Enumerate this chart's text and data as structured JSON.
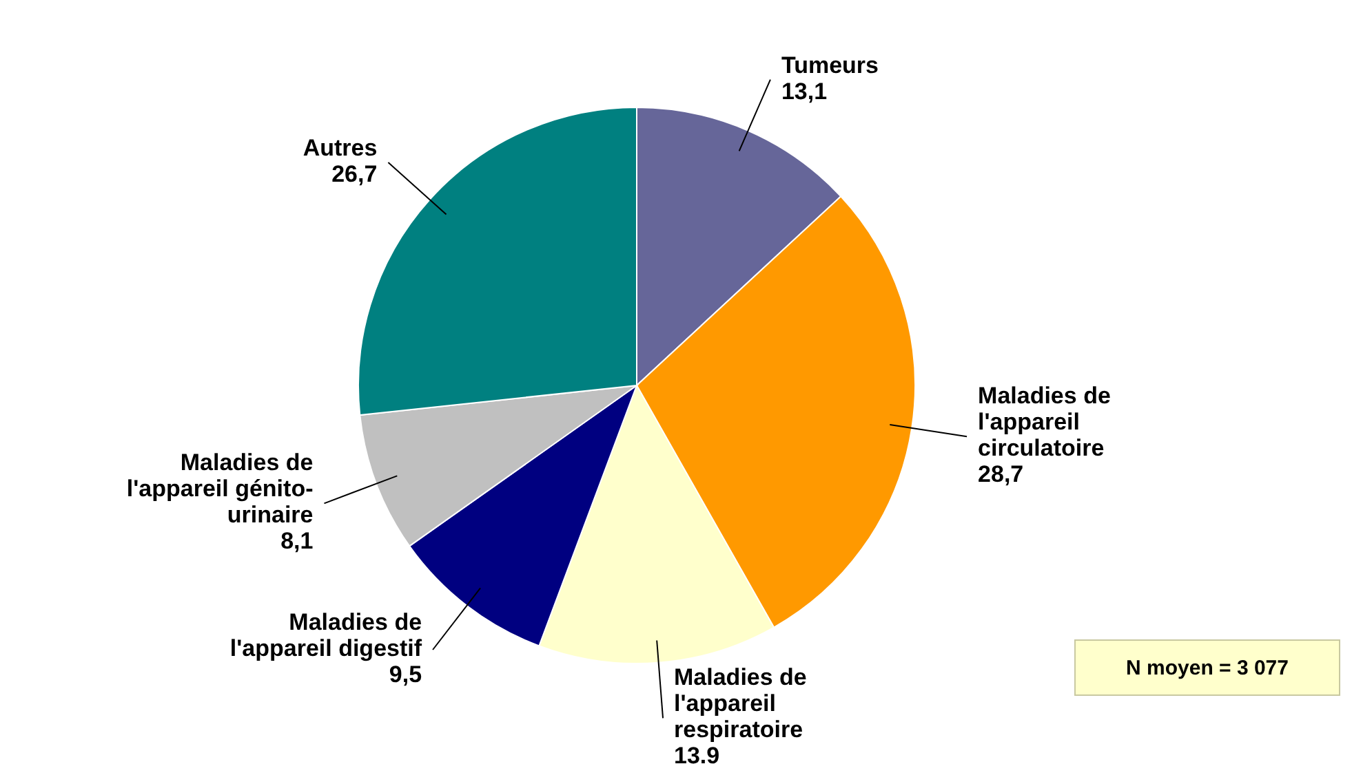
{
  "chart_data": {
    "type": "pie",
    "categories": [
      "Tumeurs",
      "Maladies de\nl'appareil\ncirculatoire",
      "Maladies de\nl'appareil\nrespiratoire",
      "Maladies de\nl'appareil digestif",
      "Maladies de\nl'appareil génito-\nurinaire",
      "Autres"
    ],
    "values": [
      13.1,
      28.7,
      13.9,
      9.5,
      8.1,
      26.7
    ],
    "value_labels": [
      "13,1",
      "28,7",
      "13.9",
      "9,5",
      "8,1",
      "26,7"
    ],
    "colors": [
      "#666699",
      "#ff9900",
      "#ffffcc",
      "#000080",
      "#c0c0c0",
      "#008080"
    ],
    "annotations": [
      "N moyen = 3 077"
    ]
  }
}
